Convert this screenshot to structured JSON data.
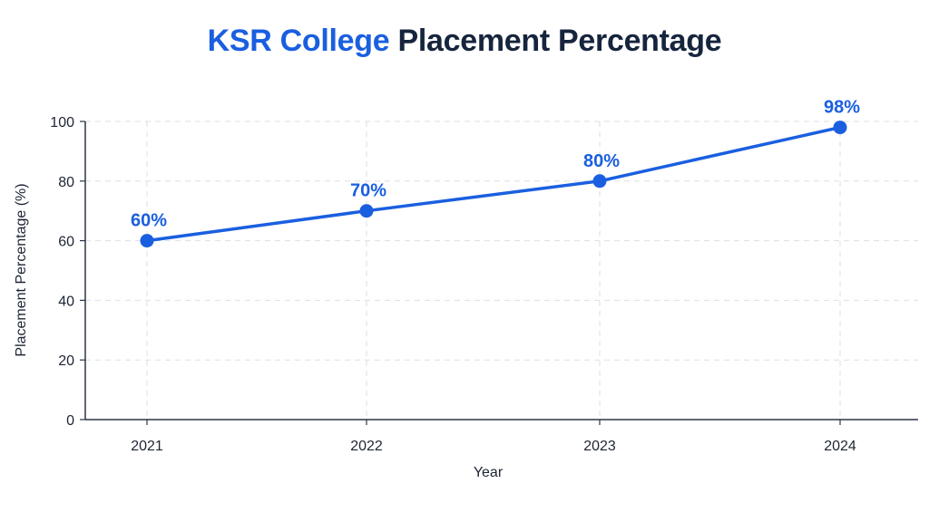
{
  "chart_data": {
    "type": "line",
    "title": "KSR College Placement Percentage",
    "title_parts": {
      "brand": "KSR College",
      "rest": "Placement Percentage"
    },
    "xlabel": "Year",
    "ylabel": "Placement Percentage (%)",
    "categories": [
      "2021",
      "2022",
      "2023",
      "2024"
    ],
    "values": [
      60,
      70,
      80,
      98
    ],
    "data_labels": [
      "60%",
      "70%",
      "80%",
      "98%"
    ],
    "ylim": [
      0,
      100
    ],
    "yticks": [
      "0",
      "20",
      "40",
      "60",
      "80",
      "100"
    ],
    "grid": true,
    "legend": "none"
  },
  "colors": {
    "accent": "#1a5fe0",
    "title_dark": "#16253d",
    "axis": "#2b3547",
    "grid": "#dcdfe5"
  }
}
